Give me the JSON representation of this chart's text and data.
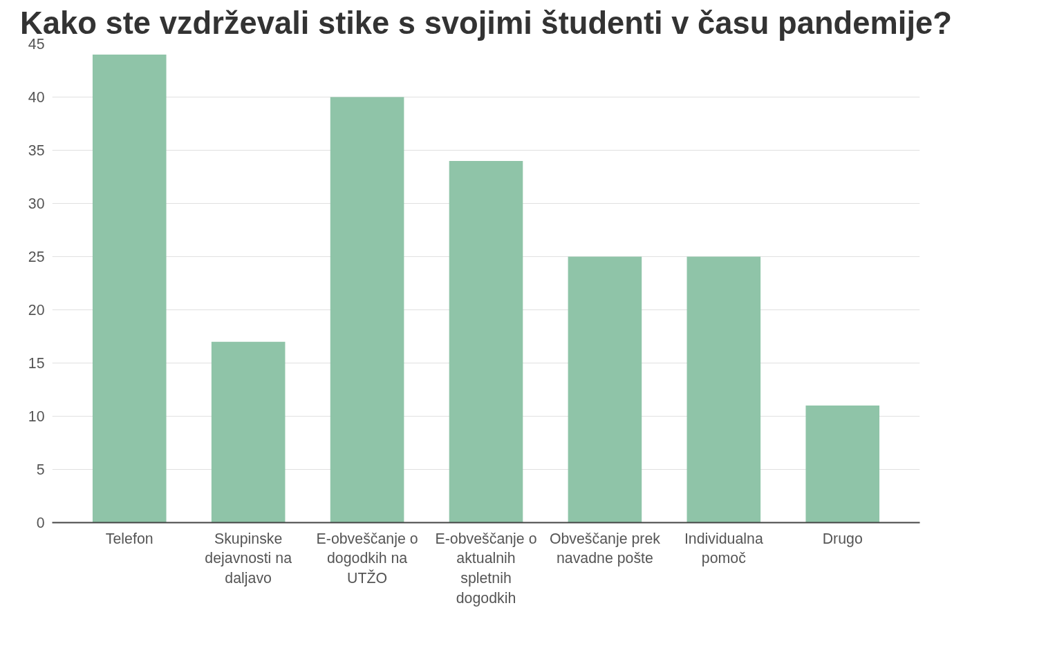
{
  "chart_data": {
    "type": "bar",
    "title": "Kako ste vzdrževali stike s svojimi študenti v času pandemije?",
    "categories": [
      "Telefon",
      "Skupinske dejavnosti na daljavo",
      "E-obveščanje o dogodkih na UTŽO",
      "E-obveščanje o aktualnih spletnih dogodkih",
      "Obveščanje prek navadne pošte",
      "Individualna pomoč",
      "Drugo"
    ],
    "values": [
      44,
      17,
      40,
      34,
      25,
      25,
      11
    ],
    "color": "#8fc4a8",
    "ylim": [
      0,
      45
    ],
    "yticks": [
      0,
      5,
      10,
      15,
      20,
      25,
      30,
      35,
      40,
      45
    ],
    "grid": "y"
  }
}
